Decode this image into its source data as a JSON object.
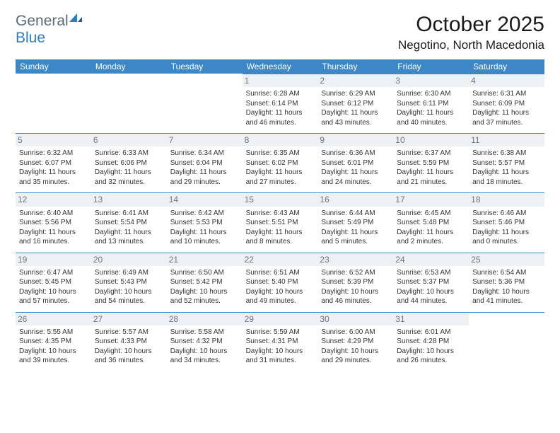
{
  "logo": {
    "text1": "General",
    "text2": "Blue"
  },
  "title": "October 2025",
  "location": "Negotino, North Macedonia",
  "colors": {
    "header_bg": "#3b87c8",
    "header_text": "#ffffff",
    "daynum_bg": "#eef1f3",
    "daynum_text": "#6a7680",
    "border": "#3b87c8",
    "body_text": "#333333",
    "logo_gray": "#5a6b78",
    "logo_blue": "#2d7dc1"
  },
  "weekdays": [
    "Sunday",
    "Monday",
    "Tuesday",
    "Wednesday",
    "Thursday",
    "Friday",
    "Saturday"
  ],
  "first_weekday_index": 3,
  "days": [
    {
      "n": 1,
      "sunrise": "6:28 AM",
      "sunset": "6:14 PM",
      "daylight": "11 hours and 46 minutes."
    },
    {
      "n": 2,
      "sunrise": "6:29 AM",
      "sunset": "6:12 PM",
      "daylight": "11 hours and 43 minutes."
    },
    {
      "n": 3,
      "sunrise": "6:30 AM",
      "sunset": "6:11 PM",
      "daylight": "11 hours and 40 minutes."
    },
    {
      "n": 4,
      "sunrise": "6:31 AM",
      "sunset": "6:09 PM",
      "daylight": "11 hours and 37 minutes."
    },
    {
      "n": 5,
      "sunrise": "6:32 AM",
      "sunset": "6:07 PM",
      "daylight": "11 hours and 35 minutes."
    },
    {
      "n": 6,
      "sunrise": "6:33 AM",
      "sunset": "6:06 PM",
      "daylight": "11 hours and 32 minutes."
    },
    {
      "n": 7,
      "sunrise": "6:34 AM",
      "sunset": "6:04 PM",
      "daylight": "11 hours and 29 minutes."
    },
    {
      "n": 8,
      "sunrise": "6:35 AM",
      "sunset": "6:02 PM",
      "daylight": "11 hours and 27 minutes."
    },
    {
      "n": 9,
      "sunrise": "6:36 AM",
      "sunset": "6:01 PM",
      "daylight": "11 hours and 24 minutes."
    },
    {
      "n": 10,
      "sunrise": "6:37 AM",
      "sunset": "5:59 PM",
      "daylight": "11 hours and 21 minutes."
    },
    {
      "n": 11,
      "sunrise": "6:38 AM",
      "sunset": "5:57 PM",
      "daylight": "11 hours and 18 minutes."
    },
    {
      "n": 12,
      "sunrise": "6:40 AM",
      "sunset": "5:56 PM",
      "daylight": "11 hours and 16 minutes."
    },
    {
      "n": 13,
      "sunrise": "6:41 AM",
      "sunset": "5:54 PM",
      "daylight": "11 hours and 13 minutes."
    },
    {
      "n": 14,
      "sunrise": "6:42 AM",
      "sunset": "5:53 PM",
      "daylight": "11 hours and 10 minutes."
    },
    {
      "n": 15,
      "sunrise": "6:43 AM",
      "sunset": "5:51 PM",
      "daylight": "11 hours and 8 minutes."
    },
    {
      "n": 16,
      "sunrise": "6:44 AM",
      "sunset": "5:49 PM",
      "daylight": "11 hours and 5 minutes."
    },
    {
      "n": 17,
      "sunrise": "6:45 AM",
      "sunset": "5:48 PM",
      "daylight": "11 hours and 2 minutes."
    },
    {
      "n": 18,
      "sunrise": "6:46 AM",
      "sunset": "5:46 PM",
      "daylight": "11 hours and 0 minutes."
    },
    {
      "n": 19,
      "sunrise": "6:47 AM",
      "sunset": "5:45 PM",
      "daylight": "10 hours and 57 minutes."
    },
    {
      "n": 20,
      "sunrise": "6:49 AM",
      "sunset": "5:43 PM",
      "daylight": "10 hours and 54 minutes."
    },
    {
      "n": 21,
      "sunrise": "6:50 AM",
      "sunset": "5:42 PM",
      "daylight": "10 hours and 52 minutes."
    },
    {
      "n": 22,
      "sunrise": "6:51 AM",
      "sunset": "5:40 PM",
      "daylight": "10 hours and 49 minutes."
    },
    {
      "n": 23,
      "sunrise": "6:52 AM",
      "sunset": "5:39 PM",
      "daylight": "10 hours and 46 minutes."
    },
    {
      "n": 24,
      "sunrise": "6:53 AM",
      "sunset": "5:37 PM",
      "daylight": "10 hours and 44 minutes."
    },
    {
      "n": 25,
      "sunrise": "6:54 AM",
      "sunset": "5:36 PM",
      "daylight": "10 hours and 41 minutes."
    },
    {
      "n": 26,
      "sunrise": "5:55 AM",
      "sunset": "4:35 PM",
      "daylight": "10 hours and 39 minutes."
    },
    {
      "n": 27,
      "sunrise": "5:57 AM",
      "sunset": "4:33 PM",
      "daylight": "10 hours and 36 minutes."
    },
    {
      "n": 28,
      "sunrise": "5:58 AM",
      "sunset": "4:32 PM",
      "daylight": "10 hours and 34 minutes."
    },
    {
      "n": 29,
      "sunrise": "5:59 AM",
      "sunset": "4:31 PM",
      "daylight": "10 hours and 31 minutes."
    },
    {
      "n": 30,
      "sunrise": "6:00 AM",
      "sunset": "4:29 PM",
      "daylight": "10 hours and 29 minutes."
    },
    {
      "n": 31,
      "sunrise": "6:01 AM",
      "sunset": "4:28 PM",
      "daylight": "10 hours and 26 minutes."
    }
  ],
  "labels": {
    "sunrise": "Sunrise:",
    "sunset": "Sunset:",
    "daylight": "Daylight:"
  }
}
